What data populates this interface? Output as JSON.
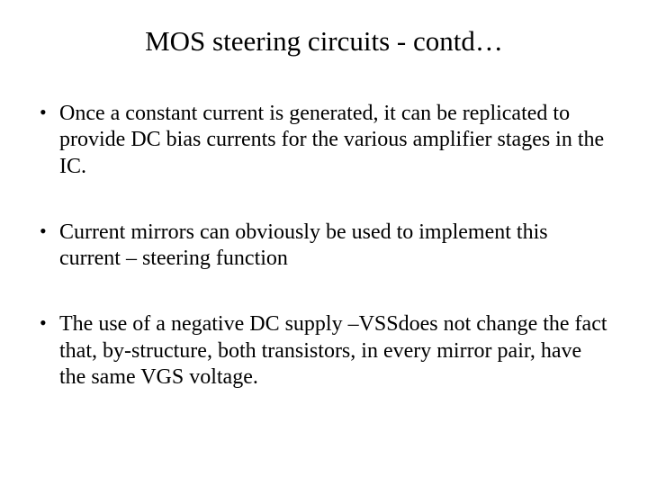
{
  "slide": {
    "title": "MOS steering circuits - contd…",
    "bullets": [
      "Once a constant current is generated, it can be replicated to provide DC bias currents for the various amplifier stages in the IC.",
      "Current mirrors can obviously be used to implement this current – steering function",
      "The use of a negative DC supply –VSSdoes not change the fact that, by-structure, both transistors, in every mirror pair, have the same VGS voltage."
    ],
    "colors": {
      "background": "#ffffff",
      "text": "#000000"
    },
    "typography": {
      "title_fontsize": 31,
      "body_fontsize": 24,
      "font_family": "Times New Roman"
    }
  }
}
